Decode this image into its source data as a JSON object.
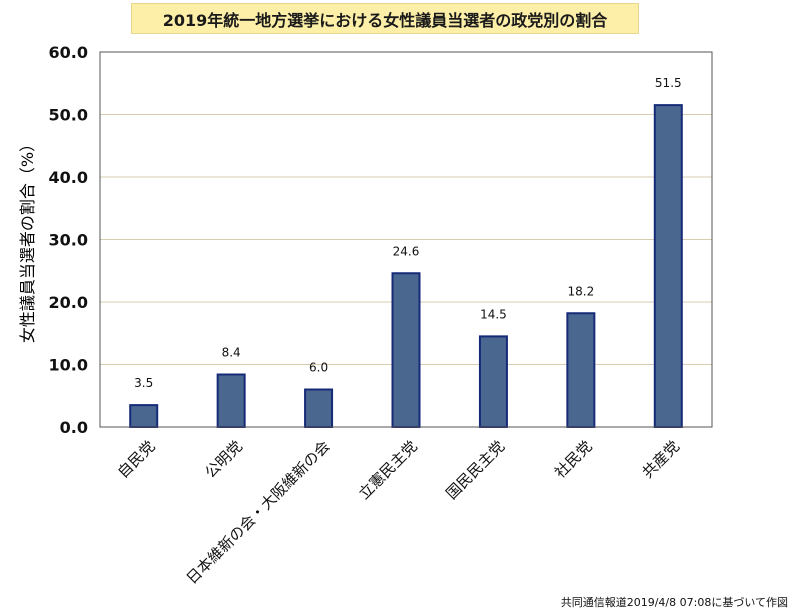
{
  "title": "2019年統一地方選挙における女性議員当選者の政党別の割合",
  "footer": "共同通信報道2019/4/8 07:08に基づいて作図",
  "chart_data": {
    "type": "bar",
    "ylabel": "女性議員当選者の割合（%）",
    "xlabel": "",
    "ylim": [
      0,
      60
    ],
    "yticks": [
      0,
      10,
      20,
      30,
      40,
      50,
      60
    ],
    "ytick_labels": [
      "0.0",
      "10.0",
      "20.0",
      "30.0",
      "40.0",
      "50.0",
      "60.0"
    ],
    "categories": [
      "自民党",
      "公明党",
      "日本維新の会・大阪維新の会",
      "立憲民主党",
      "国民民主党",
      "社民党",
      "共産党"
    ],
    "values": [
      3.5,
      8.4,
      6.0,
      24.6,
      14.5,
      18.2,
      51.5
    ],
    "value_labels": [
      "3.5",
      "8.4",
      "6.0",
      "24.6",
      "14.5",
      "18.2",
      "51.5"
    ],
    "grid": true,
    "colors": {
      "bar_fill": "#4a6790",
      "bar_stroke": "#162a78",
      "grid": "#d9cdb0",
      "axis": "#222222"
    }
  }
}
